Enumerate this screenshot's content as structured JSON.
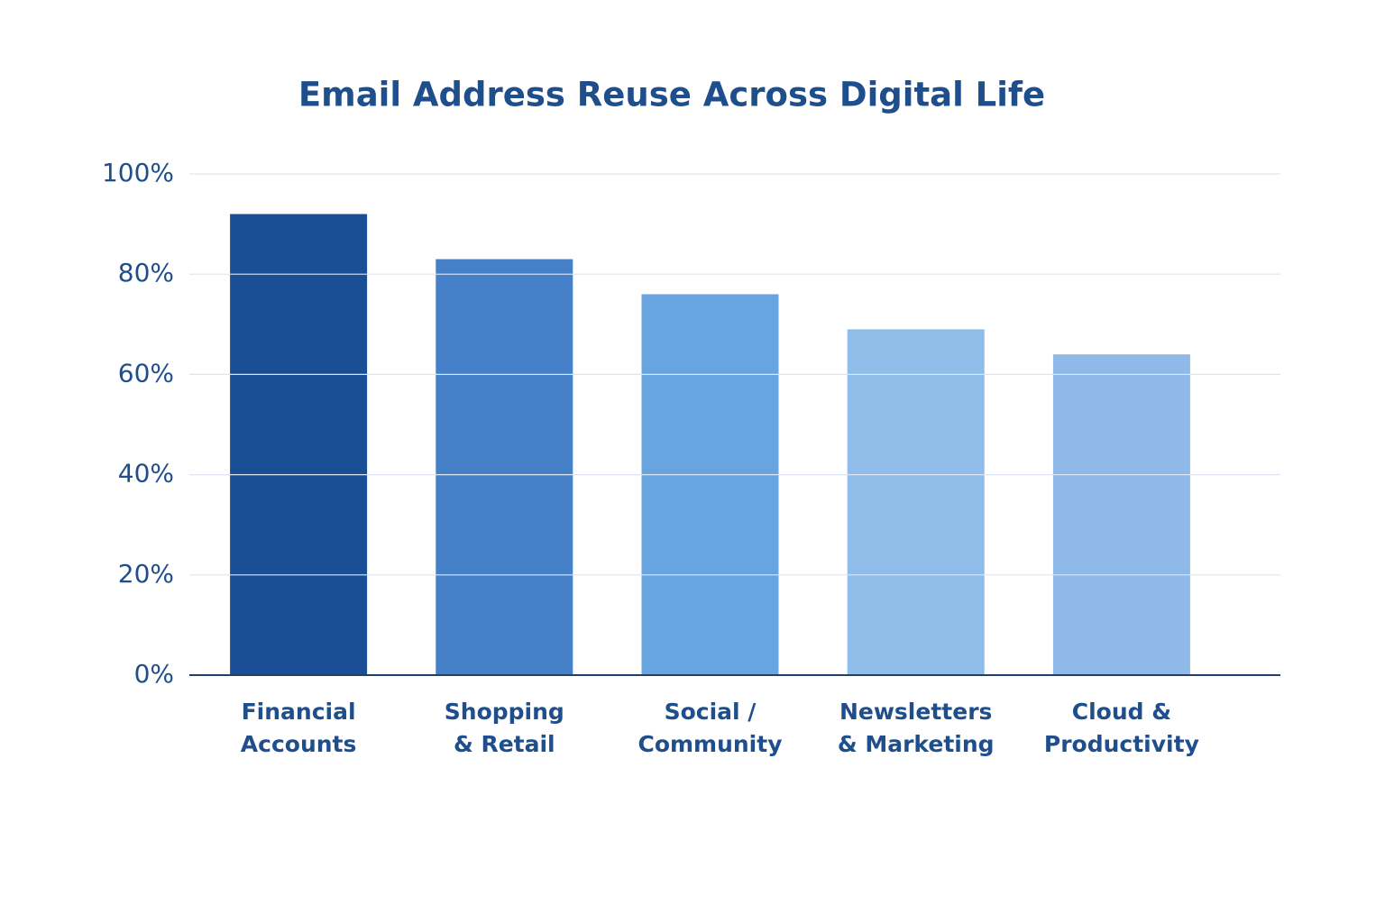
{
  "chart_data": {
    "type": "bar",
    "title": "Email Address Reuse Across Digital Life",
    "categories": [
      "Financial\nAccounts",
      "Shopping\n& Retail",
      "Social /\nCommunity",
      "Newsletters\n& Marketing",
      "Cloud &\nProductivity"
    ],
    "values": [
      92,
      83,
      76,
      69,
      64
    ],
    "colors": [
      "#1a4f96",
      "#4680c8",
      "#68a4df",
      "#8fbce8",
      "#8fb9e8"
    ],
    "ylim": [
      0,
      100
    ],
    "yticks": [
      {
        "value": 0,
        "label": "0%"
      },
      {
        "value": 20,
        "label": "20%"
      },
      {
        "value": 40,
        "label": "40%"
      },
      {
        "value": 60,
        "label": "60%"
      },
      {
        "value": 80,
        "label": "80%"
      },
      {
        "value": 100,
        "label": "100%"
      }
    ],
    "grid": true
  }
}
